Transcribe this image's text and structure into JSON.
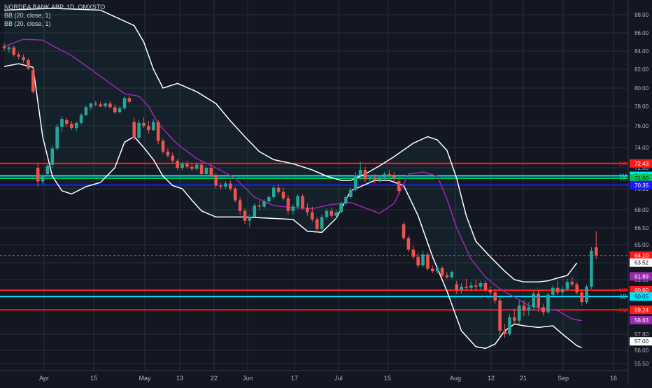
{
  "header": {
    "symbol_line": "NORDEA BANK ABP, 1D, OMXSTO",
    "indicators": [
      "BB (20, close, 1)",
      "BB (20, close, 1)"
    ]
  },
  "colors": {
    "background": "#131722",
    "grid": "#2a2e39",
    "up": "#26a69a",
    "down": "#ef5350",
    "bb_outer": "#ffffff",
    "bb_inner": "#9c27b0",
    "red_line": "#ff1a1a",
    "cyan_line": "#00e5ff",
    "green_line": "#00c853",
    "blue_line": "#1a1aff",
    "axis_text": "#b2b5be"
  },
  "chart_data": {
    "type": "candlestick",
    "y_axis_ticks": [
      "88.00",
      "86.00",
      "84.00",
      "82.00",
      "80.00",
      "78.00",
      "76.00",
      "74.00",
      "72.00",
      "70.00",
      "68.00",
      "66.50",
      "65.00",
      "63.50",
      "61.50",
      "60.00",
      "57.80",
      "56.00",
      "55.50"
    ],
    "x_axis_ticks": [
      "Apr",
      "15",
      "May",
      "13",
      "22",
      "Jun",
      "17",
      "Jul",
      "15",
      "Aug",
      "12",
      "21",
      "Sep",
      "16"
    ],
    "candles": [
      {
        "o": 84.5,
        "h": 84.9,
        "l": 84.0,
        "c": 84.3
      },
      {
        "o": 84.2,
        "h": 84.6,
        "l": 83.8,
        "c": 84.4
      },
      {
        "o": 84.4,
        "h": 84.6,
        "l": 83.4,
        "c": 83.6
      },
      {
        "o": 83.6,
        "h": 83.9,
        "l": 83.1,
        "c": 83.4
      },
      {
        "o": 83.3,
        "h": 83.6,
        "l": 82.7,
        "c": 83.0
      },
      {
        "o": 83.0,
        "h": 83.2,
        "l": 81.9,
        "c": 82.1
      },
      {
        "o": 81.9,
        "h": 82.2,
        "l": 79.4,
        "c": 79.6
      },
      {
        "o": 72.0,
        "h": 72.5,
        "l": 70.2,
        "c": 70.7
      },
      {
        "o": 70.7,
        "h": 71.4,
        "l": 70.4,
        "c": 71.3
      },
      {
        "o": 71.4,
        "h": 72.4,
        "l": 71.2,
        "c": 72.2
      },
      {
        "o": 72.3,
        "h": 74.2,
        "l": 72.0,
        "c": 73.9
      },
      {
        "o": 73.9,
        "h": 76.2,
        "l": 73.7,
        "c": 75.9
      },
      {
        "o": 75.9,
        "h": 77.0,
        "l": 75.4,
        "c": 76.7
      },
      {
        "o": 76.6,
        "h": 76.8,
        "l": 75.9,
        "c": 76.2
      },
      {
        "o": 76.2,
        "h": 76.5,
        "l": 75.6,
        "c": 75.8
      },
      {
        "o": 75.8,
        "h": 76.4,
        "l": 75.5,
        "c": 76.3
      },
      {
        "o": 76.3,
        "h": 77.3,
        "l": 76.1,
        "c": 77.1
      },
      {
        "o": 77.1,
        "h": 78.1,
        "l": 77.0,
        "c": 77.9
      },
      {
        "o": 77.9,
        "h": 78.4,
        "l": 77.6,
        "c": 78.3
      },
      {
        "o": 78.3,
        "h": 78.6,
        "l": 78.0,
        "c": 78.2
      },
      {
        "o": 78.2,
        "h": 78.5,
        "l": 77.9,
        "c": 78.0
      },
      {
        "o": 78.0,
        "h": 78.4,
        "l": 77.8,
        "c": 78.3
      },
      {
        "o": 78.3,
        "h": 78.6,
        "l": 77.8,
        "c": 77.9
      },
      {
        "o": 77.9,
        "h": 78.2,
        "l": 77.2,
        "c": 77.4
      },
      {
        "o": 77.4,
        "h": 78.0,
        "l": 77.3,
        "c": 77.8
      },
      {
        "o": 77.8,
        "h": 79.1,
        "l": 77.6,
        "c": 78.9
      },
      {
        "o": 78.9,
        "h": 79.2,
        "l": 78.3,
        "c": 78.5
      },
      {
        "o": 76.4,
        "h": 76.8,
        "l": 74.7,
        "c": 74.9
      },
      {
        "o": 74.9,
        "h": 76.6,
        "l": 74.7,
        "c": 76.3
      },
      {
        "o": 76.3,
        "h": 76.9,
        "l": 75.8,
        "c": 76.0
      },
      {
        "o": 76.0,
        "h": 76.5,
        "l": 75.3,
        "c": 75.6
      },
      {
        "o": 75.6,
        "h": 76.7,
        "l": 75.5,
        "c": 76.4
      },
      {
        "o": 76.4,
        "h": 76.6,
        "l": 74.3,
        "c": 74.6
      },
      {
        "o": 74.6,
        "h": 74.8,
        "l": 73.4,
        "c": 73.6
      },
      {
        "o": 73.6,
        "h": 73.9,
        "l": 73.0,
        "c": 73.2
      },
      {
        "o": 73.2,
        "h": 73.5,
        "l": 72.4,
        "c": 72.7
      },
      {
        "o": 72.7,
        "h": 72.9,
        "l": 71.8,
        "c": 72.0
      },
      {
        "o": 72.0,
        "h": 72.6,
        "l": 71.8,
        "c": 72.4
      },
      {
        "o": 72.4,
        "h": 72.7,
        "l": 71.9,
        "c": 72.1
      },
      {
        "o": 72.1,
        "h": 72.5,
        "l": 71.7,
        "c": 71.9
      },
      {
        "o": 71.9,
        "h": 72.5,
        "l": 71.7,
        "c": 72.3
      },
      {
        "o": 72.3,
        "h": 72.6,
        "l": 71.2,
        "c": 71.4
      },
      {
        "o": 71.4,
        "h": 72.2,
        "l": 71.2,
        "c": 72.0
      },
      {
        "o": 72.0,
        "h": 72.3,
        "l": 71.0,
        "c": 71.2
      },
      {
        "o": 71.2,
        "h": 71.5,
        "l": 70.0,
        "c": 70.3
      },
      {
        "o": 70.3,
        "h": 70.6,
        "l": 69.9,
        "c": 70.2
      },
      {
        "o": 70.2,
        "h": 70.7,
        "l": 70.0,
        "c": 70.5
      },
      {
        "o": 70.5,
        "h": 70.8,
        "l": 69.8,
        "c": 70.0
      },
      {
        "o": 70.0,
        "h": 70.2,
        "l": 68.7,
        "c": 68.9
      },
      {
        "o": 68.9,
        "h": 69.2,
        "l": 67.6,
        "c": 67.9
      },
      {
        "o": 67.9,
        "h": 68.1,
        "l": 66.8,
        "c": 67.1
      },
      {
        "o": 67.1,
        "h": 67.6,
        "l": 66.6,
        "c": 67.4
      },
      {
        "o": 67.4,
        "h": 68.6,
        "l": 67.3,
        "c": 68.4
      },
      {
        "o": 68.4,
        "h": 68.9,
        "l": 68.0,
        "c": 68.3
      },
      {
        "o": 68.3,
        "h": 69.0,
        "l": 68.1,
        "c": 68.8
      },
      {
        "o": 68.8,
        "h": 69.4,
        "l": 68.6,
        "c": 69.2
      },
      {
        "o": 69.2,
        "h": 70.3,
        "l": 69.0,
        "c": 70.1
      },
      {
        "o": 70.1,
        "h": 70.4,
        "l": 69.5,
        "c": 69.7
      },
      {
        "o": 69.7,
        "h": 70.1,
        "l": 68.9,
        "c": 69.1
      },
      {
        "o": 69.1,
        "h": 69.4,
        "l": 67.6,
        "c": 67.9
      },
      {
        "o": 67.9,
        "h": 68.5,
        "l": 67.6,
        "c": 68.3
      },
      {
        "o": 68.3,
        "h": 69.5,
        "l": 68.1,
        "c": 69.3
      },
      {
        "o": 69.3,
        "h": 69.5,
        "l": 68.0,
        "c": 68.2
      },
      {
        "o": 68.2,
        "h": 68.6,
        "l": 67.5,
        "c": 67.8
      },
      {
        "o": 67.8,
        "h": 68.3,
        "l": 67.0,
        "c": 67.2
      },
      {
        "o": 67.2,
        "h": 67.4,
        "l": 66.1,
        "c": 66.4
      },
      {
        "o": 66.4,
        "h": 67.6,
        "l": 66.2,
        "c": 67.4
      },
      {
        "o": 67.4,
        "h": 68.1,
        "l": 67.2,
        "c": 67.9
      },
      {
        "o": 67.9,
        "h": 68.2,
        "l": 67.3,
        "c": 67.5
      },
      {
        "o": 67.5,
        "h": 68.0,
        "l": 67.2,
        "c": 67.8
      },
      {
        "o": 67.8,
        "h": 68.8,
        "l": 67.7,
        "c": 68.6
      },
      {
        "o": 68.6,
        "h": 69.4,
        "l": 68.4,
        "c": 69.2
      },
      {
        "o": 69.2,
        "h": 70.1,
        "l": 69.0,
        "c": 69.9
      },
      {
        "o": 69.9,
        "h": 71.6,
        "l": 69.8,
        "c": 71.3
      },
      {
        "o": 71.3,
        "h": 72.6,
        "l": 70.8,
        "c": 71.8
      },
      {
        "o": 71.8,
        "h": 72.1,
        "l": 70.6,
        "c": 70.9
      },
      {
        "o": 70.9,
        "h": 71.3,
        "l": 70.5,
        "c": 71.1
      },
      {
        "o": 71.1,
        "h": 71.4,
        "l": 70.5,
        "c": 70.8
      },
      {
        "o": 70.8,
        "h": 71.3,
        "l": 70.6,
        "c": 71.1
      },
      {
        "o": 71.1,
        "h": 71.6,
        "l": 70.9,
        "c": 71.4
      },
      {
        "o": 71.4,
        "h": 71.8,
        "l": 71.0,
        "c": 71.2
      },
      {
        "o": 71.2,
        "h": 71.6,
        "l": 70.7,
        "c": 71.0
      },
      {
        "o": 70.7,
        "h": 70.9,
        "l": 69.6,
        "c": 69.8
      },
      {
        "o": 66.8,
        "h": 67.0,
        "l": 65.4,
        "c": 65.6
      },
      {
        "o": 65.6,
        "h": 65.8,
        "l": 64.4,
        "c": 64.6
      },
      {
        "o": 64.6,
        "h": 64.9,
        "l": 63.8,
        "c": 64.0
      },
      {
        "o": 64.0,
        "h": 64.3,
        "l": 62.9,
        "c": 63.2
      },
      {
        "o": 63.2,
        "h": 64.5,
        "l": 63.0,
        "c": 64.2
      },
      {
        "o": 64.2,
        "h": 64.4,
        "l": 62.6,
        "c": 62.8
      },
      {
        "o": 62.8,
        "h": 63.2,
        "l": 62.3,
        "c": 62.5
      },
      {
        "o": 62.5,
        "h": 63.1,
        "l": 62.2,
        "c": 62.9
      },
      {
        "o": 62.9,
        "h": 63.1,
        "l": 61.8,
        "c": 62.0
      },
      {
        "o": 62.0,
        "h": 62.4,
        "l": 61.6,
        "c": 61.8
      },
      {
        "o": 61.8,
        "h": 62.6,
        "l": 61.6,
        "c": 62.4
      },
      {
        "o": 61.1,
        "h": 61.4,
        "l": 60.3,
        "c": 60.6
      },
      {
        "o": 60.6,
        "h": 61.2,
        "l": 60.3,
        "c": 60.9
      },
      {
        "o": 60.9,
        "h": 61.6,
        "l": 60.6,
        "c": 60.8
      },
      {
        "o": 60.8,
        "h": 61.3,
        "l": 60.5,
        "c": 61.0
      },
      {
        "o": 61.0,
        "h": 61.5,
        "l": 60.6,
        "c": 60.9
      },
      {
        "o": 60.9,
        "h": 61.4,
        "l": 60.6,
        "c": 61.2
      },
      {
        "o": 61.2,
        "h": 61.4,
        "l": 60.4,
        "c": 60.6
      },
      {
        "o": 60.6,
        "h": 60.9,
        "l": 60.2,
        "c": 60.4
      },
      {
        "o": 60.4,
        "h": 60.7,
        "l": 59.6,
        "c": 59.8
      },
      {
        "o": 59.8,
        "h": 60.0,
        "l": 57.6,
        "c": 58.0
      },
      {
        "o": 58.0,
        "h": 58.4,
        "l": 57.4,
        "c": 57.8
      },
      {
        "o": 57.8,
        "h": 59.0,
        "l": 57.6,
        "c": 58.8
      },
      {
        "o": 58.8,
        "h": 59.3,
        "l": 58.4,
        "c": 58.6
      },
      {
        "o": 58.6,
        "h": 59.8,
        "l": 58.4,
        "c": 59.5
      },
      {
        "o": 59.5,
        "h": 59.8,
        "l": 58.9,
        "c": 59.2
      },
      {
        "o": 59.2,
        "h": 59.7,
        "l": 58.9,
        "c": 59.4
      },
      {
        "o": 59.4,
        "h": 60.5,
        "l": 59.2,
        "c": 60.3
      },
      {
        "o": 60.3,
        "h": 60.6,
        "l": 59.1,
        "c": 59.4
      },
      {
        "o": 59.4,
        "h": 59.6,
        "l": 58.9,
        "c": 59.1
      },
      {
        "o": 59.1,
        "h": 60.4,
        "l": 59.0,
        "c": 60.2
      },
      {
        "o": 60.2,
        "h": 61.0,
        "l": 60.0,
        "c": 60.8
      },
      {
        "o": 60.8,
        "h": 61.4,
        "l": 60.2,
        "c": 60.4
      },
      {
        "o": 60.4,
        "h": 60.9,
        "l": 60.1,
        "c": 60.7
      },
      {
        "o": 60.7,
        "h": 61.6,
        "l": 60.5,
        "c": 61.3
      },
      {
        "o": 61.3,
        "h": 61.8,
        "l": 60.9,
        "c": 61.1
      },
      {
        "o": 61.1,
        "h": 61.3,
        "l": 60.2,
        "c": 60.4
      },
      {
        "o": 60.4,
        "h": 60.6,
        "l": 59.5,
        "c": 59.7
      },
      {
        "o": 59.7,
        "h": 61.1,
        "l": 59.6,
        "c": 60.9
      },
      {
        "o": 60.9,
        "h": 64.8,
        "l": 60.7,
        "c": 64.5
      },
      {
        "o": 64.8,
        "h": 66.2,
        "l": 63.8,
        "c": 64.1
      }
    ],
    "bb_upper": [
      [
        0,
        88.5
      ],
      [
        10,
        88.7
      ],
      [
        20,
        88.5
      ],
      [
        27,
        86.8
      ],
      [
        29,
        85.0
      ],
      [
        31,
        82.0
      ],
      [
        33,
        80.0
      ],
      [
        36,
        80.5
      ],
      [
        40,
        79.6
      ],
      [
        44,
        78.3
      ],
      [
        47,
        76.5
      ],
      [
        50,
        75.0
      ],
      [
        53,
        73.6
      ],
      [
        56,
        72.8
      ],
      [
        60,
        72.4
      ],
      [
        64,
        71.8
      ],
      [
        67,
        71.2
      ],
      [
        70,
        70.8
      ],
      [
        72,
        70.8
      ],
      [
        75,
        71.4
      ],
      [
        78,
        72.2
      ],
      [
        81,
        73.1
      ],
      [
        85,
        74.4
      ],
      [
        88,
        75.0
      ],
      [
        90,
        74.7
      ],
      [
        92,
        73.7
      ],
      [
        94,
        71.0
      ],
      [
        96,
        67.5
      ],
      [
        98,
        65.3
      ],
      [
        101,
        64.0
      ],
      [
        104,
        62.5
      ],
      [
        106,
        61.5
      ],
      [
        108,
        61.3
      ],
      [
        111,
        61.3
      ],
      [
        113,
        61.4
      ],
      [
        115,
        61.7
      ],
      [
        117,
        62.0
      ],
      [
        119,
        63.5
      ]
    ],
    "bb_lower": [
      [
        0,
        82.3
      ],
      [
        3,
        82.6
      ],
      [
        6,
        82.2
      ],
      [
        8,
        75.0
      ],
      [
        10,
        71.2
      ],
      [
        12,
        69.8
      ],
      [
        14,
        69.5
      ],
      [
        17,
        70.2
      ],
      [
        20,
        70.6
      ],
      [
        23,
        72.0
      ],
      [
        25,
        74.5
      ],
      [
        27,
        75.0
      ],
      [
        29,
        74.0
      ],
      [
        31,
        72.8
      ],
      [
        33,
        71.2
      ],
      [
        35,
        70.3
      ],
      [
        37,
        70.0
      ],
      [
        39,
        68.9
      ],
      [
        41,
        67.9
      ],
      [
        44,
        67.4
      ],
      [
        50,
        67.4
      ],
      [
        55,
        67.3
      ],
      [
        60,
        67.2
      ],
      [
        63,
        66.2
      ],
      [
        66,
        66.1
      ],
      [
        69,
        67.3
      ],
      [
        72,
        69.8
      ],
      [
        74,
        70.2
      ],
      [
        77,
        70.8
      ],
      [
        80,
        70.8
      ],
      [
        83,
        70.3
      ],
      [
        86,
        67.5
      ],
      [
        89,
        64.0
      ],
      [
        92,
        60.5
      ],
      [
        95,
        58.0
      ],
      [
        98,
        56.4
      ],
      [
        100,
        56.2
      ],
      [
        102,
        56.7
      ],
      [
        104,
        58.0
      ],
      [
        106,
        58.4
      ],
      [
        108,
        58.3
      ],
      [
        111,
        58.2
      ],
      [
        114,
        58.3
      ],
      [
        116,
        57.8
      ],
      [
        119,
        56.5
      ],
      [
        120,
        56.3
      ]
    ],
    "bb_basis": [
      [
        0,
        84.5
      ],
      [
        4,
        85.3
      ],
      [
        8,
        85.2
      ],
      [
        10,
        84.6
      ],
      [
        14,
        83.5
      ],
      [
        18,
        82.0
      ],
      [
        22,
        80.5
      ],
      [
        25,
        79.4
      ],
      [
        28,
        79.1
      ],
      [
        30,
        78.0
      ],
      [
        32,
        76.2
      ],
      [
        36,
        74.3
      ],
      [
        40,
        72.9
      ],
      [
        44,
        72.0
      ],
      [
        48,
        71.0
      ],
      [
        52,
        69.2
      ],
      [
        56,
        68.4
      ],
      [
        60,
        68.2
      ],
      [
        64,
        68.1
      ],
      [
        68,
        68.5
      ],
      [
        72,
        68.7
      ],
      [
        76,
        68.0
      ],
      [
        78,
        67.7
      ],
      [
        81,
        68.6
      ],
      [
        84,
        71.4
      ],
      [
        87,
        71.6
      ],
      [
        90,
        71.2
      ],
      [
        92,
        69.0
      ],
      [
        94,
        66.5
      ],
      [
        97,
        63.8
      ],
      [
        100,
        61.8
      ],
      [
        103,
        60.7
      ],
      [
        106,
        60.0
      ],
      [
        109,
        59.5
      ],
      [
        112,
        59.3
      ],
      [
        115,
        59.2
      ],
      [
        118,
        58.7
      ],
      [
        120,
        58.6
      ]
    ],
    "levels": [
      {
        "value": 72.43,
        "label": "72.43",
        "color": "#ff1a1a",
        "style": "solid",
        "tag": "1W"
      },
      {
        "value": 71.23,
        "label": "71.23",
        "color": "#00e5ff",
        "style": "solid",
        "tag": "1M"
      },
      {
        "value": 71.0,
        "label": "71.00",
        "color": "#00c853",
        "style": "solid",
        "tag": "1D"
      },
      {
        "value": 70.35,
        "label": "70.35",
        "color": "#1a1aff",
        "style": "solid",
        "tag": ""
      },
      {
        "value": 64.1,
        "label": "64.10",
        "color": "#ff1a1a",
        "style": "dashed",
        "tag": ""
      },
      {
        "value": 60.6,
        "label": "60.60",
        "color": "#ff1a1a",
        "style": "solid",
        "tag": "1W"
      },
      {
        "value": 60.05,
        "label": "60.05",
        "color": "#00e5ff",
        "style": "solid",
        "tag": "1D"
      },
      {
        "value": 59.24,
        "label": "59.24",
        "color": "#ff1a1a",
        "style": "solid",
        "tag": "1M"
      }
    ],
    "right_labels": [
      {
        "value": 63.52,
        "label": "63.52",
        "bg": "#ffffff",
        "fg": "#131722"
      },
      {
        "value": 61.89,
        "label": "61.89",
        "bg": "#9c27b0",
        "fg": "#ffffff"
      },
      {
        "value": 58.63,
        "label": "58.63",
        "bg": "#9c27b0",
        "fg": "#ffffff"
      },
      {
        "value": 57.0,
        "label": "57.00",
        "bg": "#ffffff",
        "fg": "#131722"
      }
    ]
  }
}
